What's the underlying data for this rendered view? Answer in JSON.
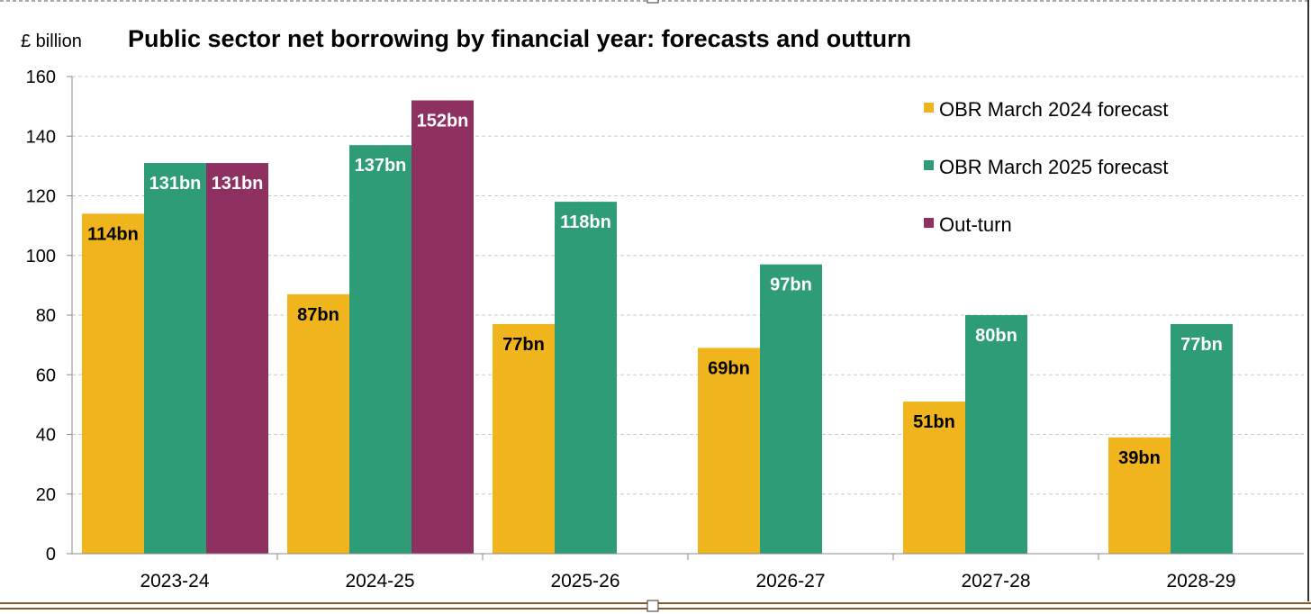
{
  "chart_data": {
    "type": "bar",
    "title": "Public sector net borrowing by financial year: forecasts and outturn",
    "ylabel": "£ billion",
    "xlabel": "",
    "ylim": [
      0,
      160
    ],
    "yticks": [
      0,
      20,
      40,
      60,
      80,
      100,
      120,
      140,
      160
    ],
    "grid": true,
    "legend_position": "top-right",
    "categories": [
      "2023-24",
      "2024-25",
      "2025-26",
      "2026-27",
      "2027-28",
      "2028-29"
    ],
    "series": [
      {
        "name": "OBR March 2024 forecast",
        "color": "#f0b41c",
        "label_color": "#000000",
        "values": [
          114,
          87,
          77,
          69,
          51,
          39
        ],
        "labels": [
          "114bn",
          "87bn",
          "77bn",
          "69bn",
          "51bn",
          "39bn"
        ]
      },
      {
        "name": "OBR March 2025 forecast",
        "color": "#2e9c76",
        "label_color": "#ffffff",
        "values": [
          131,
          137,
          118,
          97,
          80,
          77
        ],
        "labels": [
          "131bn",
          "137bn",
          "118bn",
          "97bn",
          "80bn",
          "77bn"
        ]
      },
      {
        "name": "Out-turn",
        "color": "#8e3060",
        "label_color": "#ffffff",
        "values": [
          131,
          152,
          null,
          null,
          null,
          null
        ],
        "labels": [
          "131bn",
          "152bn",
          null,
          null,
          null,
          null
        ]
      }
    ]
  }
}
